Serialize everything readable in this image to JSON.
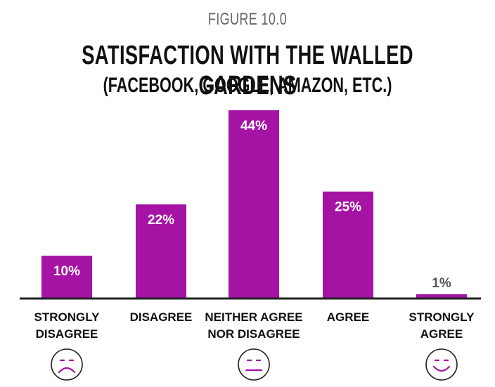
{
  "figure_label": "FIGURE 10.0",
  "chart_data": {
    "type": "bar",
    "title": "SATISFACTION WITH THE WALLED GARDENS",
    "subtitle": "(FACEBOOK, GOOGLE, AMAZON, ETC.)",
    "categories": [
      [
        "STRONGLY",
        "DISAGREE"
      ],
      [
        "DISAGREE"
      ],
      [
        "NEITHER AGREE",
        "NOR DISAGREE"
      ],
      [
        "AGREE"
      ],
      [
        "STRONGLY",
        "AGREE"
      ]
    ],
    "values": [
      10,
      22,
      44,
      25,
      1
    ],
    "value_labels": [
      "10%",
      "22%",
      "44%",
      "25%",
      "1%"
    ],
    "icons": [
      "frown-face-icon",
      "neutral-face-icon",
      "smile-face-icon"
    ],
    "ylim": [
      0,
      44
    ],
    "grid": false,
    "legend": "none",
    "colors": {
      "bar": "#A513A5",
      "bar_label_inside": "#ffffff",
      "bar_label_outside": "#555555",
      "axis": "#222222",
      "icon": "#A513A5",
      "figure_label": "#666666"
    }
  }
}
